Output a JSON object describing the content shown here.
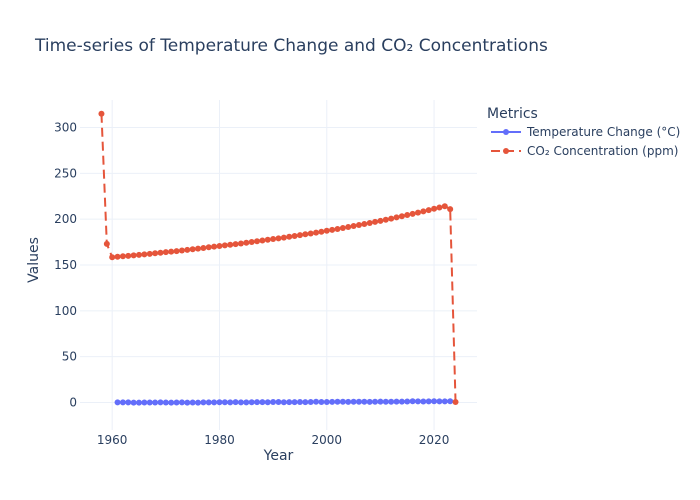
{
  "chart_data": {
    "type": "line",
    "title": "Time-series of Temperature Change and CO₂ Concentrations",
    "xlabel": "Year",
    "ylabel": "Values",
    "xlim": [
      1954,
      2028
    ],
    "ylim": [
      -30,
      330
    ],
    "x_ticks": [
      1960,
      1980,
      2000,
      2020
    ],
    "y_ticks": [
      0,
      50,
      100,
      150,
      200,
      250,
      300
    ],
    "grid": true,
    "legend": {
      "title": "Metrics",
      "position": "top-right"
    },
    "series": [
      {
        "name": "Temperature Change (°C)",
        "color": "#636efa",
        "dash": "solid",
        "x": [
          1961,
          1962,
          1963,
          1964,
          1965,
          1966,
          1967,
          1968,
          1969,
          1970,
          1971,
          1972,
          1973,
          1974,
          1975,
          1976,
          1977,
          1978,
          1979,
          1980,
          1981,
          1982,
          1983,
          1984,
          1985,
          1986,
          1987,
          1988,
          1989,
          1990,
          1991,
          1992,
          1993,
          1994,
          1995,
          1996,
          1997,
          1998,
          1999,
          2000,
          2001,
          2002,
          2003,
          2004,
          2005,
          2006,
          2007,
          2008,
          2009,
          2010,
          2011,
          2012,
          2013,
          2014,
          2015,
          2016,
          2017,
          2018,
          2019,
          2020,
          2021,
          2022,
          2023
        ],
        "y": [
          0.1,
          0.1,
          0.1,
          -0.1,
          -0.1,
          0,
          0,
          0,
          0.1,
          0,
          -0.1,
          0,
          0.2,
          -0.1,
          0,
          -0.1,
          0.2,
          0.1,
          0.2,
          0.3,
          0.3,
          0.2,
          0.4,
          0.2,
          0.2,
          0.3,
          0.4,
          0.4,
          0.3,
          0.5,
          0.5,
          0.3,
          0.4,
          0.4,
          0.5,
          0.4,
          0.6,
          0.8,
          0.6,
          0.6,
          0.7,
          0.8,
          0.8,
          0.7,
          0.8,
          0.8,
          0.8,
          0.7,
          0.8,
          0.9,
          0.8,
          0.8,
          0.9,
          1.0,
          1.1,
          1.3,
          1.2,
          1.1,
          1.2,
          1.3,
          1.2,
          1.2,
          1.4
        ]
      },
      {
        "name": "CO₂ Concentration (ppm)",
        "color": "#e5553b",
        "dash": "dash",
        "x": [
          1958,
          1959,
          1960,
          1961,
          1962,
          1963,
          1964,
          1965,
          1966,
          1967,
          1968,
          1969,
          1970,
          1971,
          1972,
          1973,
          1974,
          1975,
          1976,
          1977,
          1978,
          1979,
          1980,
          1981,
          1982,
          1983,
          1984,
          1985,
          1986,
          1987,
          1988,
          1989,
          1990,
          1991,
          1992,
          1993,
          1994,
          1995,
          1996,
          1997,
          1998,
          1999,
          2000,
          2001,
          2002,
          2003,
          2004,
          2005,
          2006,
          2007,
          2008,
          2009,
          2010,
          2011,
          2012,
          2013,
          2014,
          2015,
          2016,
          2017,
          2018,
          2019,
          2020,
          2021,
          2022,
          2023,
          2024
        ],
        "y": [
          315,
          173,
          158.5,
          159,
          159.5,
          160,
          160.5,
          161,
          161.6,
          162.2,
          162.8,
          163.4,
          164,
          164.6,
          165.2,
          165.8,
          166.5,
          167.2,
          167.9,
          168.6,
          169.3,
          170,
          170.7,
          171.4,
          172.1,
          172.8,
          173.5,
          174.3,
          175.1,
          175.9,
          176.7,
          177.5,
          178.3,
          179.1,
          179.9,
          180.8,
          181.7,
          182.6,
          183.5,
          184.4,
          185.3,
          186.3,
          187.3,
          188.3,
          189.3,
          190.3,
          191.4,
          192.5,
          193.6,
          194.7,
          195.8,
          197,
          198.2,
          199.4,
          200.6,
          201.9,
          203.2,
          204.5,
          205.8,
          207.1,
          208.5,
          209.9,
          211.3,
          212.7,
          214.1,
          211,
          0.5
        ]
      }
    ]
  }
}
